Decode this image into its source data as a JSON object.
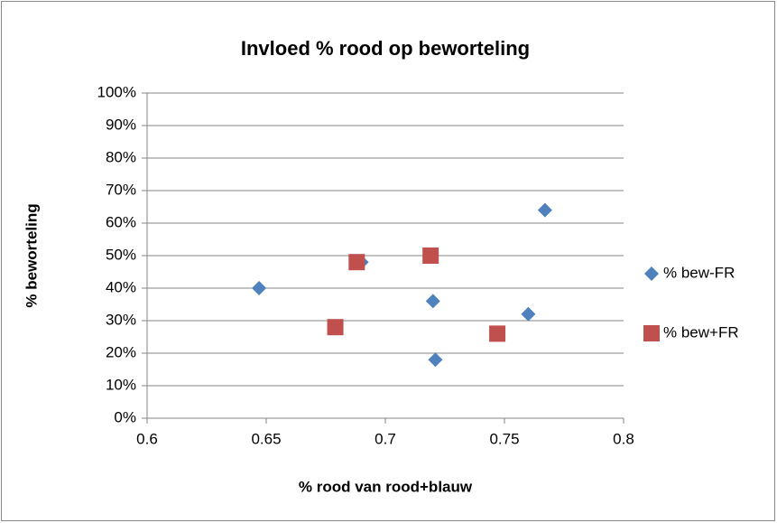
{
  "chart_data": {
    "type": "scatter",
    "title": "Invloed % rood op beworteling",
    "xlabel": "% rood van rood+blauw",
    "ylabel": "% beworteling",
    "xlim": [
      0.6,
      0.8
    ],
    "xticks": [
      0.6,
      0.65,
      0.7,
      0.75,
      0.8
    ],
    "ylim": [
      0,
      100
    ],
    "yticks": [
      {
        "value": 0,
        "label": "0%"
      },
      {
        "value": 10,
        "label": "10%"
      },
      {
        "value": 20,
        "label": "20%"
      },
      {
        "value": 30,
        "label": "30%"
      },
      {
        "value": 40,
        "label": "40%"
      },
      {
        "value": 50,
        "label": "50%"
      },
      {
        "value": 60,
        "label": "60%"
      },
      {
        "value": 70,
        "label": "70%"
      },
      {
        "value": 80,
        "label": "80%"
      },
      {
        "value": 90,
        "label": "90%"
      },
      {
        "value": 100,
        "label": "100%"
      }
    ],
    "grid": true,
    "legend": "right",
    "series": [
      {
        "name": "% bew-FR",
        "color": "#4f81bd",
        "marker": "diamond",
        "x": [
          0.647,
          0.69,
          0.72,
          0.721,
          0.76,
          0.767
        ],
        "values": [
          40,
          48,
          36,
          18,
          32,
          64
        ]
      },
      {
        "name": "% bew+FR",
        "color": "#c0504d",
        "marker": "square",
        "x": [
          0.679,
          0.688,
          0.719,
          0.747
        ],
        "values": [
          28,
          48,
          50,
          26
        ]
      }
    ]
  }
}
